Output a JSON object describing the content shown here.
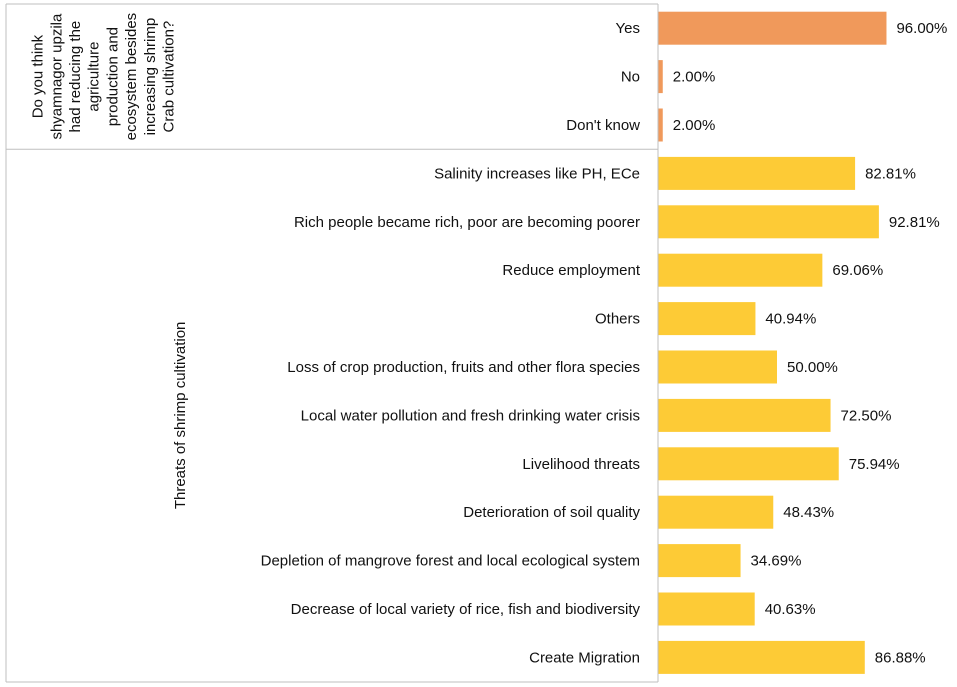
{
  "chart_data": {
    "type": "bar",
    "orientation": "horizontal",
    "xlim": [
      0,
      100
    ],
    "groups": [
      {
        "label_lines": [
          "Do you think",
          "shyamnagor upzila",
          "had reducing the",
          "agriculture",
          "production and",
          "ecosystem besides",
          "increasing shrimp",
          "Crab cultivation?"
        ],
        "color": "#F0995B",
        "categories": [
          "Yes",
          "No",
          "Don't know"
        ],
        "values": [
          96.0,
          2.0,
          2.0
        ],
        "value_labels": [
          "96.00%",
          "2.00%",
          "2.00%"
        ]
      },
      {
        "label_lines": [
          "Threats of shrimp cultivation"
        ],
        "color": "#FDCB36",
        "categories": [
          "Salinity increases like PH, ECe",
          "Rich people became rich, poor are becoming poorer",
          "Reduce employment",
          "Others",
          "Loss of crop production, fruits and other flora species",
          "Local water pollution and fresh drinking water crisis",
          "Livelihood threats",
          "Deterioration of soil quality",
          "Depletion of mangrove forest and local ecological system",
          "Decrease of local variety of rice, fish and biodiversity",
          "Create Migration"
        ],
        "values": [
          82.81,
          92.81,
          69.06,
          40.94,
          50.0,
          72.5,
          75.94,
          48.43,
          34.69,
          40.63,
          86.88
        ],
        "value_labels": [
          "82.81%",
          "92.81%",
          "69.06%",
          "40.94%",
          "50.00%",
          "72.50%",
          "75.94%",
          "48.43%",
          "34.69%",
          "40.63%",
          "86.88%"
        ]
      }
    ]
  }
}
